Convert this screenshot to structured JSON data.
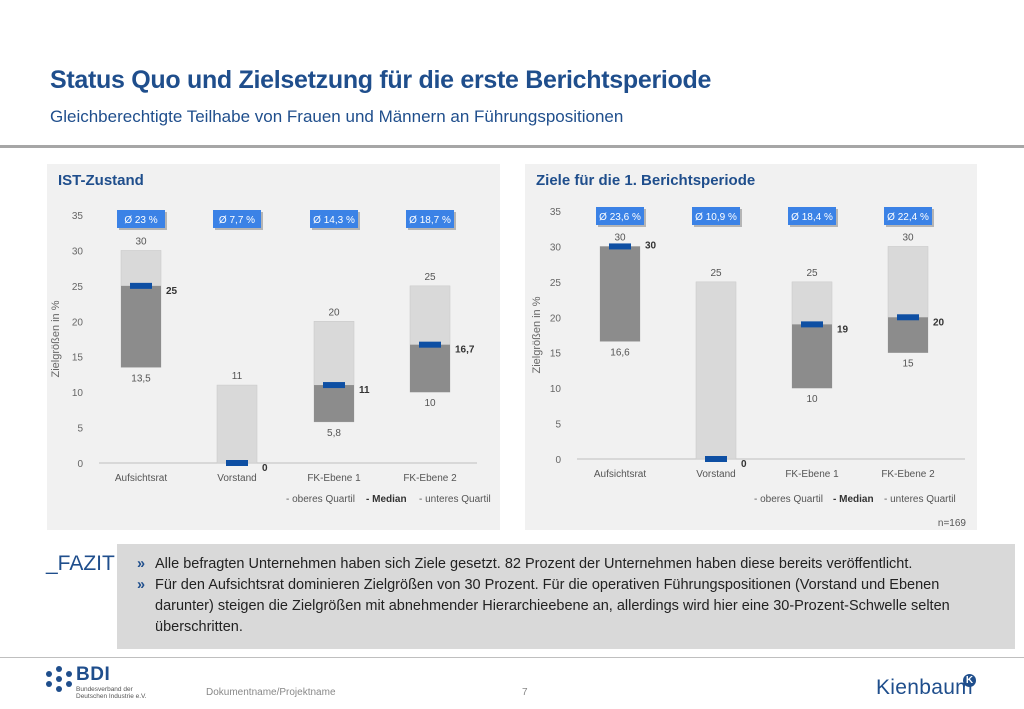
{
  "header": {
    "title": "Status Quo und Zielsetzung für die erste Berichtsperiode",
    "subtitle": "Gleichberechtigte Teilhabe von Frauen und Männern an Führungspositionen"
  },
  "colors": {
    "accent": "#1f4e8c",
    "median_marker": "#0e4fa3",
    "badge": "#3b82e6",
    "upper_bar": "#d9d9d9",
    "lower_bar": "#8c8c8c",
    "panel": "#f1f1f1"
  },
  "chart_data": [
    {
      "type": "bar",
      "title": "IST-Zustand",
      "ylabel": "Zielgrößen in %",
      "ylim": [
        0,
        35
      ],
      "yticks": [
        0,
        5,
        10,
        15,
        20,
        25,
        30,
        35
      ],
      "categories": [
        "Aufsichtsrat",
        "Vorstand",
        "FK-Ebene 1",
        "FK-Ebene 2"
      ],
      "upper_quartile": [
        30,
        11,
        20,
        25
      ],
      "median": [
        25,
        0,
        11,
        16.7
      ],
      "lower_quartile": [
        13.5,
        0,
        5.8,
        10
      ],
      "upper_labels": [
        "30",
        "11",
        "20",
        "25"
      ],
      "median_labels": [
        "25",
        "0",
        "11",
        "16,7"
      ],
      "lower_labels": [
        "13,5",
        "",
        "5,8",
        "10"
      ],
      "averages": [
        "Ø 23 %",
        "Ø 7,7 %",
        "Ø 14,3 %",
        "Ø 18,7 %"
      ],
      "legend": [
        "- oberes Quartil",
        "- Median",
        "- unteres Quartil"
      ],
      "note": ""
    },
    {
      "type": "bar",
      "title": "Ziele für die 1. Berichtsperiode",
      "ylabel": "Zielgrößen in %",
      "ylim": [
        0,
        35
      ],
      "yticks": [
        0,
        5,
        10,
        15,
        20,
        25,
        30,
        35
      ],
      "categories": [
        "Aufsichtsrat",
        "Vorstand",
        "FK-Ebene 1",
        "FK-Ebene 2"
      ],
      "upper_quartile": [
        30,
        25,
        25,
        30
      ],
      "median": [
        30,
        0,
        19,
        20
      ],
      "lower_quartile": [
        16.6,
        0,
        10,
        15
      ],
      "upper_labels": [
        "30",
        "25",
        "25",
        "30"
      ],
      "median_labels": [
        "30",
        "0",
        "19",
        "20"
      ],
      "lower_labels": [
        "16,6",
        "",
        "10",
        "15"
      ],
      "averages": [
        "Ø 23,6 %",
        "Ø 10,9 %",
        "Ø 18,4 %",
        "Ø 22,4 %"
      ],
      "legend": [
        "- oberes Quartil",
        "- Median",
        "- unteres Quartil"
      ],
      "note": "n=169"
    }
  ],
  "fazit": {
    "label": "_FAZIT",
    "bullet": "»",
    "items": [
      "Alle befragten Unternehmen haben sich Ziele gesetzt. 82 Prozent der Unternehmen haben diese bereits veröffentlicht.",
      "Für den Aufsichtsrat dominieren Zielgrößen von 30 Prozent. Für die operativen Führungspositionen (Vorstand und Ebenen darunter) steigen die Zielgrößen mit abnehmender Hierarchieebene an, allerdings wird hier eine 30-Prozent-Schwelle selten überschritten."
    ]
  },
  "footer": {
    "logo_text": "BDI",
    "logo_subtext": "Bundesverband der Deutschen Industrie e.V.",
    "document_name": "Dokumentname/Projektname",
    "page_number": "7",
    "brand": "Kienbaum",
    "brand_mark": "K"
  }
}
